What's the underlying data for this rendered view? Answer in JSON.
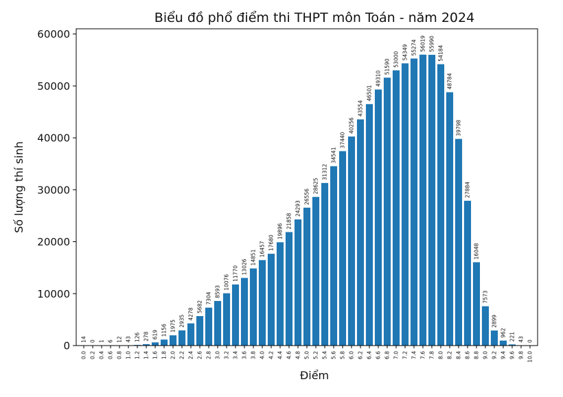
{
  "chart_data": {
    "type": "bar",
    "title": "Biểu đồ phổ điểm thi THPT môn Toán - năm 2024",
    "xlabel": "Điểm",
    "ylabel": "Số lượng thí sinh",
    "ylim": [
      0,
      61000
    ],
    "yticks": [
      "0",
      "10000",
      "20000",
      "30000",
      "40000",
      "50000",
      "60000"
    ],
    "grid": false,
    "bar_color": "#1f77b4",
    "categories": [
      "0.0",
      "0.2",
      "0.4",
      "0.6",
      "0.8",
      "1.0",
      "1.2",
      "1.4",
      "1.6",
      "1.8",
      "2.0",
      "2.2",
      "2.4",
      "2.6",
      "2.8",
      "3.0",
      "3.2",
      "3.4",
      "3.6",
      "3.8",
      "4.0",
      "4.2",
      "4.4",
      "4.6",
      "4.8",
      "5.0",
      "5.2",
      "5.4",
      "5.6",
      "5.8",
      "6.0",
      "6.2",
      "6.4",
      "6.6",
      "6.8",
      "7.0",
      "7.2",
      "7.4",
      "7.6",
      "7.8",
      "8.0",
      "8.2",
      "8.4",
      "8.6",
      "8.8",
      "9.0",
      "9.2",
      "9.4",
      "9.6",
      "9.8",
      "10.0"
    ],
    "values": [
      14,
      0,
      1,
      6,
      12,
      43,
      126,
      278,
      619,
      1156,
      1975,
      2935,
      4278,
      5682,
      7304,
      8593,
      10076,
      11770,
      13026,
      14851,
      16457,
      17680,
      19896,
      21858,
      24293,
      26556,
      28625,
      31312,
      34541,
      37440,
      40256,
      43554,
      46501,
      49310,
      51590,
      53000,
      54349,
      55274,
      56019,
      55990,
      54184,
      48784,
      39798,
      27884,
      16048,
      7573,
      2899,
      962,
      221,
      43,
      0
    ]
  }
}
